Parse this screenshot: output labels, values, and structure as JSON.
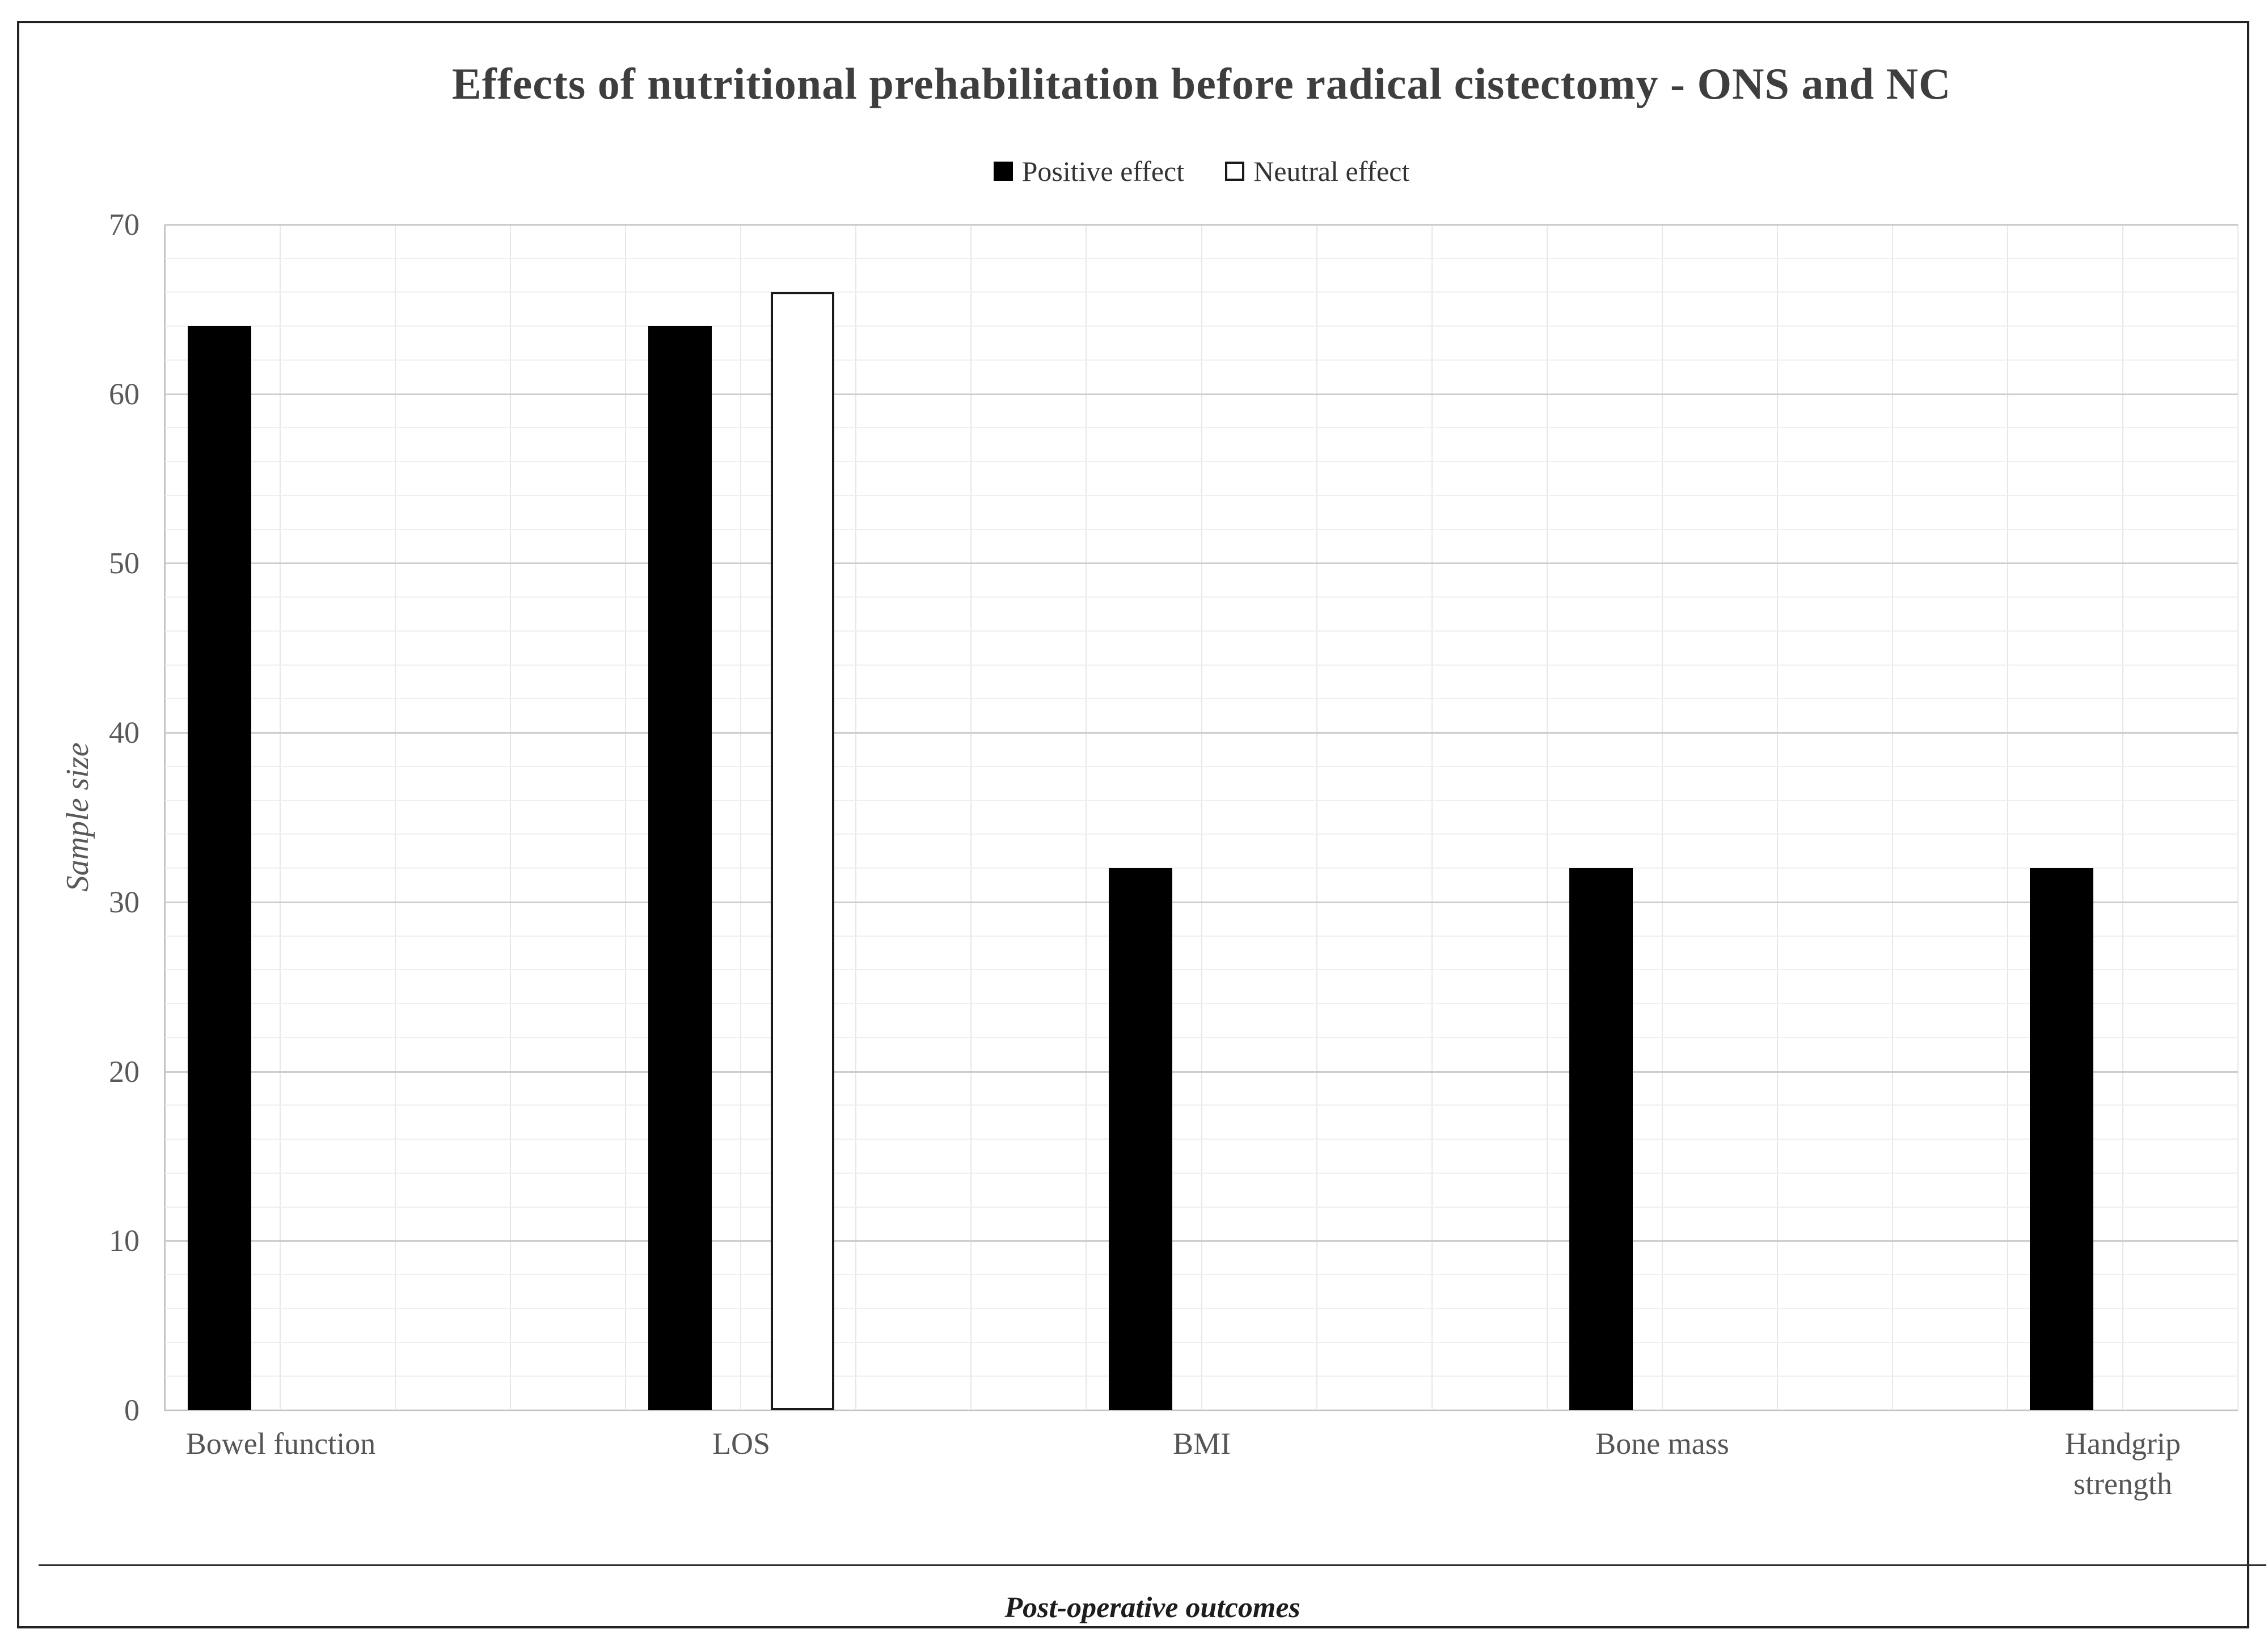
{
  "chart_data": {
    "type": "bar",
    "title": "Effects of nutritional prehabilitation before radical cistectomy - ONS and NC",
    "categories": [
      "Bowel function",
      "LOS",
      "BMI",
      "Bone mass",
      "Handgrip strength"
    ],
    "category_label_lines": [
      [
        "Bowel function"
      ],
      [
        "LOS"
      ],
      [
        "BMI"
      ],
      [
        "Bone mass"
      ],
      [
        "Handgrip",
        "strength"
      ]
    ],
    "series": [
      {
        "name": "Positive effect",
        "values": [
          64,
          64,
          32,
          32,
          32
        ],
        "fill": "#000000"
      },
      {
        "name": "Neutral effect",
        "values": [
          0,
          66,
          0,
          0,
          0
        ],
        "fill": "#ffffff",
        "stroke": "#1a1a1a"
      }
    ],
    "xlabel": "Post-operative outcomes",
    "ylabel": "Sample size",
    "ylim": [
      0,
      70
    ],
    "y_major_step": 10,
    "y_minor_step": 2,
    "y_ticks": [
      0,
      10,
      20,
      30,
      40,
      50,
      60,
      70
    ],
    "grid": true,
    "legend_position": "top-center",
    "colors": {
      "positive_bar": "#000000",
      "neutral_bar_fill": "#ffffff",
      "neutral_bar_border": "#1a1a1a",
      "major_gridline": "#cdcdcd",
      "minor_gridline": "#efefef",
      "vertical_gridline": "#e7e7e7",
      "axis_line": "#c4c4c4",
      "title_text": "#3e3e3e",
      "tick_text": "#595959",
      "frame_border": "#222222"
    }
  }
}
